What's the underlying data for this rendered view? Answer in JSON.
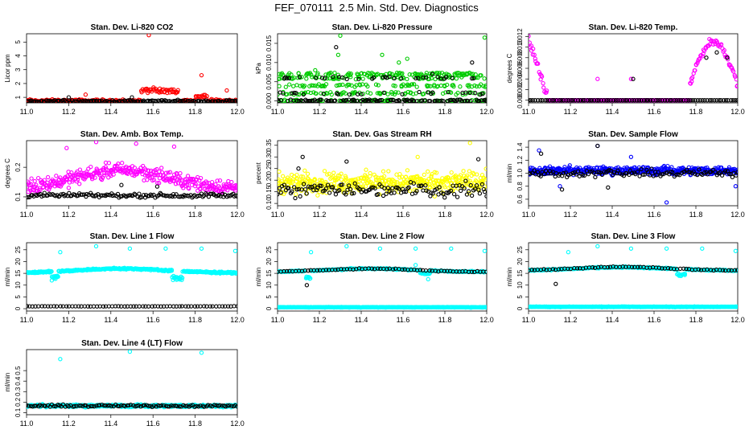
{
  "page_title": "FEF_070111  2.5 Min. Std. Dev. Diagnostics",
  "colors": {
    "red": "#ff0000",
    "black": "#000000",
    "green": "#00cc00",
    "magenta": "#ff00ff",
    "yellow": "#ffff00",
    "blue": "#0000ff",
    "cyan": "#00ffff"
  },
  "chart_data": [
    {
      "type": "scatter",
      "title": "Stan. Dev. Li-820 CO2",
      "ylabel": "Licor ppm",
      "xlabel": "",
      "xlim": [
        11.0,
        12.0
      ],
      "ylim": [
        0.6,
        5.6
      ],
      "yticks": [
        1,
        2,
        3,
        4,
        5
      ],
      "series": [
        {
          "color": "#ff0000",
          "noise": {
            "kind": "base",
            "base": 0.75,
            "spread": 0.15,
            "n": 240
          },
          "bumps": [
            [
              11.54,
              11.72,
              0.9
            ],
            [
              11.8,
              11.86,
              0.4
            ]
          ],
          "outliers": [
            [
              11.58,
              5.5
            ],
            [
              11.83,
              2.6
            ],
            [
              11.95,
              1.5
            ],
            [
              11.28,
              1.2
            ]
          ]
        },
        {
          "color": "#000000",
          "noise": {
            "kind": "base",
            "base": 0.72,
            "spread": 0.12,
            "n": 150
          },
          "outliers": [
            [
              11.2,
              1.0
            ],
            [
              11.5,
              1.0
            ]
          ]
        }
      ]
    },
    {
      "type": "scatter",
      "title": "Stan. Dev. Li-820 Pressure",
      "ylabel": "kPa",
      "xlabel": "",
      "xlim": [
        11.0,
        12.0
      ],
      "ylim": [
        -0.0005,
        0.0175
      ],
      "yticks": [
        0.0,
        0.005,
        0.01,
        0.015
      ],
      "series": [
        {
          "color": "#00cc00",
          "noise": {
            "kind": "levels",
            "levels": [
              0.0,
              0.002,
              0.004,
              0.006,
              0.007
            ],
            "n": 420
          },
          "outliers": [
            [
              11.3,
              0.017
            ],
            [
              11.99,
              0.0165
            ],
            [
              11.29,
              0.012
            ],
            [
              11.5,
              0.012
            ],
            [
              11.62,
              0.011
            ],
            [
              11.18,
              0.008
            ],
            [
              11.58,
              0.01
            ]
          ]
        },
        {
          "color": "#000000",
          "noise": {
            "kind": "levels",
            "levels": [
              0.0,
              0.0,
              0.0,
              0.002,
              0.006
            ],
            "n": 160
          },
          "outliers": [
            [
              11.28,
              0.014
            ],
            [
              11.93,
              0.01
            ],
            [
              11.74,
              0.007
            ]
          ]
        }
      ]
    },
    {
      "type": "scatter",
      "title": "Stan. Dev. Li-820 Temp.",
      "ylabel": "degrees C",
      "xlabel": "",
      "xlim": [
        11.0,
        12.0
      ],
      "ylim": [
        -0.0005,
        0.0125
      ],
      "yticks": [
        0.0,
        0.002,
        0.004,
        0.006,
        0.008,
        0.01,
        0.012
      ],
      "series": [
        {
          "color": "#ff00ff",
          "noise": {
            "kind": "hump",
            "n": 260
          },
          "outliers": [
            [
              11.33,
              0.004
            ],
            [
              11.49,
              0.004
            ],
            [
              11.78,
              0.0035
            ]
          ]
        },
        {
          "color": "#000000",
          "noise": {
            "kind": "base",
            "base": 0.0,
            "spread": 0.0,
            "n": 90
          },
          "outliers": [
            [
              11.5,
              0.004
            ],
            [
              11.9,
              0.009
            ],
            [
              11.85,
              0.008
            ],
            [
              11.95,
              0.008
            ]
          ]
        }
      ]
    },
    {
      "type": "scatter",
      "title": "Stan. Dev. Amb. Box Temp.",
      "ylabel": "degrees C",
      "xlabel": "",
      "xlim": [
        11.0,
        12.0
      ],
      "ylim": [
        0.07,
        0.29
      ],
      "yticks": [
        0.1,
        0.2
      ],
      "series": [
        {
          "color": "#ff00ff",
          "noise": {
            "kind": "hill",
            "base": 0.13,
            "peak": 0.19,
            "spread": 0.035,
            "n": 360
          },
          "outliers": [
            [
              11.33,
              0.285
            ],
            [
              11.52,
              0.28
            ],
            [
              11.7,
              0.27
            ],
            [
              11.19,
              0.265
            ]
          ]
        },
        {
          "color": "#000000",
          "noise": {
            "kind": "base",
            "base": 0.105,
            "spread": 0.01,
            "n": 140
          },
          "outliers": [
            [
              11.45,
              0.14
            ],
            [
              11.62,
              0.135
            ]
          ]
        }
      ]
    },
    {
      "type": "scatter",
      "title": "Stan. Dev. Gas Stream RH",
      "ylabel": "percent",
      "xlabel": "",
      "xlim": [
        11.0,
        12.0
      ],
      "ylim": [
        0.09,
        0.37
      ],
      "yticks": [
        0.1,
        0.15,
        0.2,
        0.25,
        0.3,
        0.35
      ],
      "series": [
        {
          "color": "#ffff00",
          "noise": {
            "kind": "base",
            "base": 0.19,
            "spread": 0.065,
            "n": 420
          },
          "outliers": [
            [
              11.92,
              0.36
            ],
            [
              11.67,
              0.3
            ]
          ]
        },
        {
          "color": "#000000",
          "noise": {
            "kind": "base",
            "base": 0.16,
            "spread": 0.045,
            "n": 130
          },
          "outliers": [
            [
              11.12,
              0.3
            ],
            [
              11.96,
              0.29
            ],
            [
              11.33,
              0.28
            ],
            [
              11.1,
              0.25
            ]
          ]
        }
      ]
    },
    {
      "type": "scatter",
      "title": "Stan. Dev. Sample Flow",
      "ylabel": "ml/min",
      "xlabel": "",
      "xlim": [
        11.0,
        12.0
      ],
      "ylim": [
        0.5,
        1.5
      ],
      "yticks": [
        0.6,
        0.8,
        1.0,
        1.2,
        1.4
      ],
      "series": [
        {
          "color": "#0000ff",
          "noise": {
            "kind": "base",
            "base": 1.04,
            "spread": 0.09,
            "n": 420
          },
          "outliers": [
            [
              11.33,
              1.42
            ],
            [
              11.05,
              1.35
            ],
            [
              11.99,
              0.8
            ],
            [
              11.66,
              0.55
            ],
            [
              11.15,
              0.8
            ],
            [
              11.49,
              1.25
            ]
          ]
        },
        {
          "color": "#000000",
          "noise": {
            "kind": "base",
            "base": 1.0,
            "spread": 0.08,
            "n": 120
          },
          "outliers": [
            [
              11.33,
              1.42
            ],
            [
              11.06,
              1.3
            ],
            [
              11.16,
              0.75
            ],
            [
              11.38,
              0.78
            ]
          ]
        }
      ]
    },
    {
      "type": "scatter",
      "title": "Stan. Dev. Line 1 Flow",
      "ylabel": "ml/min",
      "xlabel": "",
      "xlim": [
        11.0,
        12.0
      ],
      "ylim": [
        -1,
        28
      ],
      "yticks": [
        0,
        5,
        10,
        15,
        20,
        25
      ],
      "series": [
        {
          "color": "#00ffff",
          "noise": {
            "kind": "hill",
            "base": 15.2,
            "peak": 17.0,
            "spread": 0.5,
            "n": 420
          },
          "bumps": [
            [
              11.69,
              11.74,
              -4.0
            ],
            [
              11.12,
              11.15,
              -3.0
            ]
          ],
          "outliers": [
            [
              11.33,
              26.5
            ],
            [
              11.16,
              24
            ],
            [
              11.49,
              25.5
            ],
            [
              11.66,
              25.5
            ],
            [
              11.83,
              25.5
            ],
            [
              11.99,
              24.5
            ],
            [
              11.12,
              12
            ]
          ]
        },
        {
          "color": "#000000",
          "noise": {
            "kind": "base",
            "base": 1.0,
            "spread": 0.1,
            "n": 70
          }
        }
      ]
    },
    {
      "type": "scatter",
      "title": "Stan. Dev. Line 2 Flow",
      "ylabel": "ml/min",
      "xlabel": "",
      "xlim": [
        11.0,
        12.0
      ],
      "ylim": [
        -1,
        28
      ],
      "yticks": [
        0,
        5,
        10,
        15,
        20,
        25
      ],
      "series": [
        {
          "color": "#00ffff",
          "noise": {
            "kind": "base",
            "base": 0.6,
            "spread": 0.15,
            "n": 420
          },
          "outliers": [
            [
              11.33,
              26.5
            ],
            [
              11.16,
              24
            ],
            [
              11.49,
              25.5
            ],
            [
              11.66,
              25.5
            ],
            [
              11.83,
              25.5
            ],
            [
              11.99,
              24.5
            ],
            [
              11.66,
              18.5
            ],
            [
              11.72,
              12.5
            ]
          ]
        },
        {
          "color": "#00ffff",
          "noise": {
            "kind": "hill",
            "base": 15.6,
            "peak": 17.0,
            "spread": 0.4,
            "n": 320
          },
          "bumps": [
            [
              11.13,
              11.16,
              -3.5
            ],
            [
              11.68,
              11.73,
              -1.5
            ]
          ]
        },
        {
          "color": "#000000",
          "noise": {
            "kind": "hill",
            "base": 15.6,
            "peak": 17.0,
            "spread": 0.3,
            "n": 70
          },
          "outliers": [
            [
              11.14,
              10
            ]
          ]
        }
      ]
    },
    {
      "type": "scatter",
      "title": "Stan. Dev. Line 3 Flow",
      "ylabel": "ml/min",
      "xlabel": "",
      "xlim": [
        11.0,
        12.0
      ],
      "ylim": [
        -1,
        28
      ],
      "yticks": [
        0,
        5,
        10,
        15,
        20,
        25
      ],
      "series": [
        {
          "color": "#00ffff",
          "noise": {
            "kind": "base",
            "base": 0.8,
            "spread": 0.2,
            "n": 420
          },
          "outliers": [
            [
              11.33,
              26.5
            ],
            [
              11.19,
              24
            ],
            [
              11.49,
              25.5
            ],
            [
              11.66,
              25.5
            ],
            [
              11.83,
              25.5
            ],
            [
              11.99,
              24.5
            ],
            [
              11.72,
              14
            ]
          ]
        },
        {
          "color": "#00ffff",
          "noise": {
            "kind": "hill",
            "base": 16.2,
            "peak": 17.6,
            "spread": 0.4,
            "n": 320
          },
          "bumps": [
            [
              11.71,
              11.75,
              -3
            ]
          ]
        },
        {
          "color": "#000000",
          "noise": {
            "kind": "hill",
            "base": 16.2,
            "peak": 17.8,
            "spread": 0.3,
            "n": 70
          },
          "outliers": [
            [
              11.13,
              10.5
            ]
          ]
        }
      ]
    },
    {
      "type": "scatter",
      "title": "Stan. Dev. Line 4 (LT) Flow",
      "ylabel": "ml/min",
      "xlabel": "",
      "xlim": [
        11.0,
        12.0
      ],
      "ylim": [
        0.08,
        0.7
      ],
      "yticks": [
        0.1,
        0.2,
        0.3,
        0.4,
        0.5
      ],
      "series": [
        {
          "color": "#00ffff",
          "noise": {
            "kind": "base",
            "base": 0.165,
            "spread": 0.018,
            "n": 420
          },
          "outliers": [
            [
              11.49,
              0.68
            ],
            [
              11.83,
              0.67
            ],
            [
              11.16,
              0.61
            ]
          ]
        },
        {
          "color": "#000000",
          "noise": {
            "kind": "base",
            "base": 0.165,
            "spread": 0.015,
            "n": 110
          }
        }
      ]
    }
  ],
  "xticks": [
    11.0,
    11.2,
    11.4,
    11.6,
    11.8,
    12.0
  ]
}
